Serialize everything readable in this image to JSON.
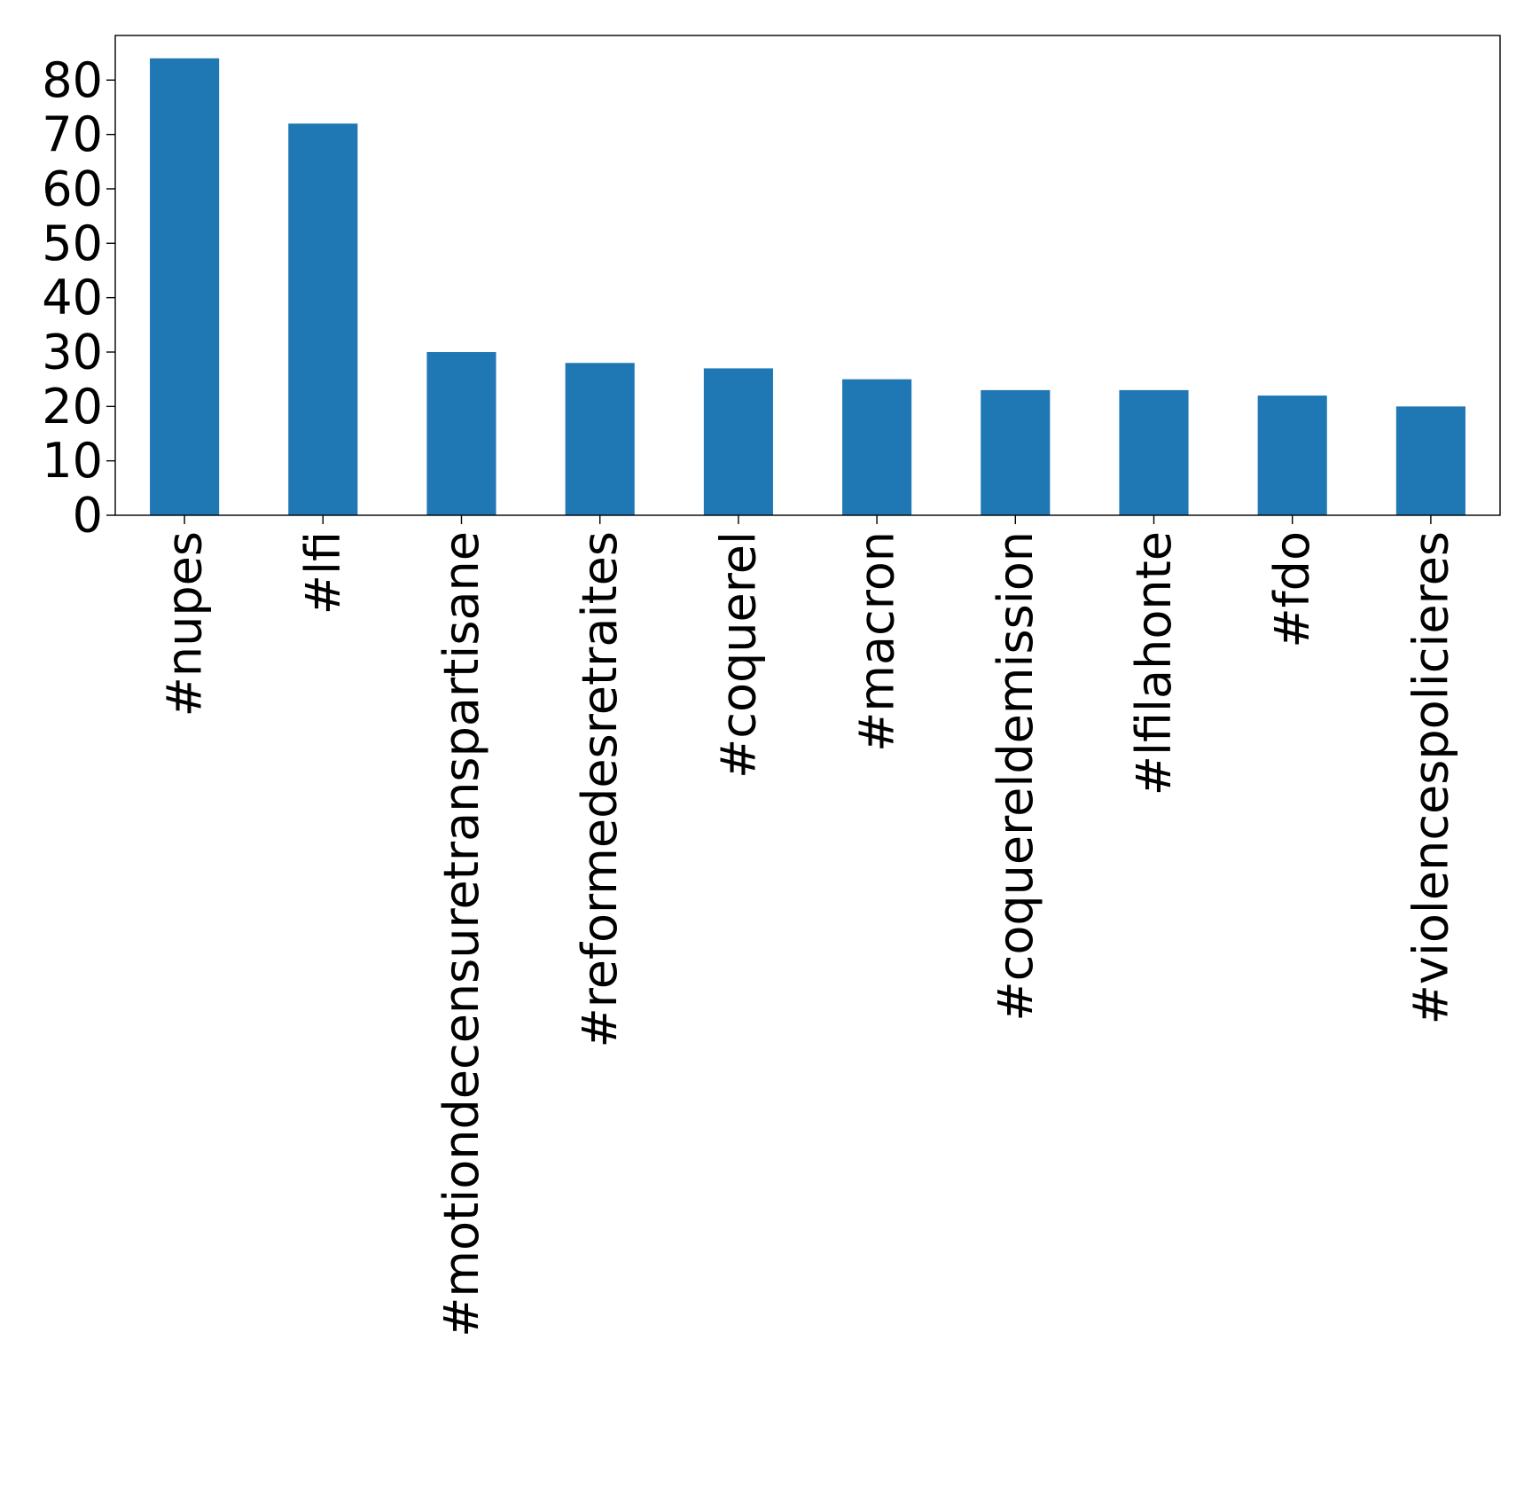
{
  "chart_data": {
    "type": "bar",
    "categories": [
      "#nupes",
      "#lfi",
      "#motiondecensuretranspartisane",
      "#reformedesretraites",
      "#coquerel",
      "#macron",
      "#coquereldemission",
      "#lfilahonte",
      "#fdo",
      "#violencespolicieres"
    ],
    "values": [
      84,
      72,
      30,
      28,
      27,
      25,
      23,
      23,
      22,
      20
    ],
    "ylim": [
      0,
      88.2
    ],
    "yticks": [
      0,
      10,
      20,
      30,
      40,
      50,
      60,
      70,
      80
    ],
    "xlabel": "",
    "ylabel": "",
    "title": "",
    "bar_color": "#1f77b4",
    "x_tick_rotation": "vertical",
    "grid": false,
    "legend": "none"
  }
}
